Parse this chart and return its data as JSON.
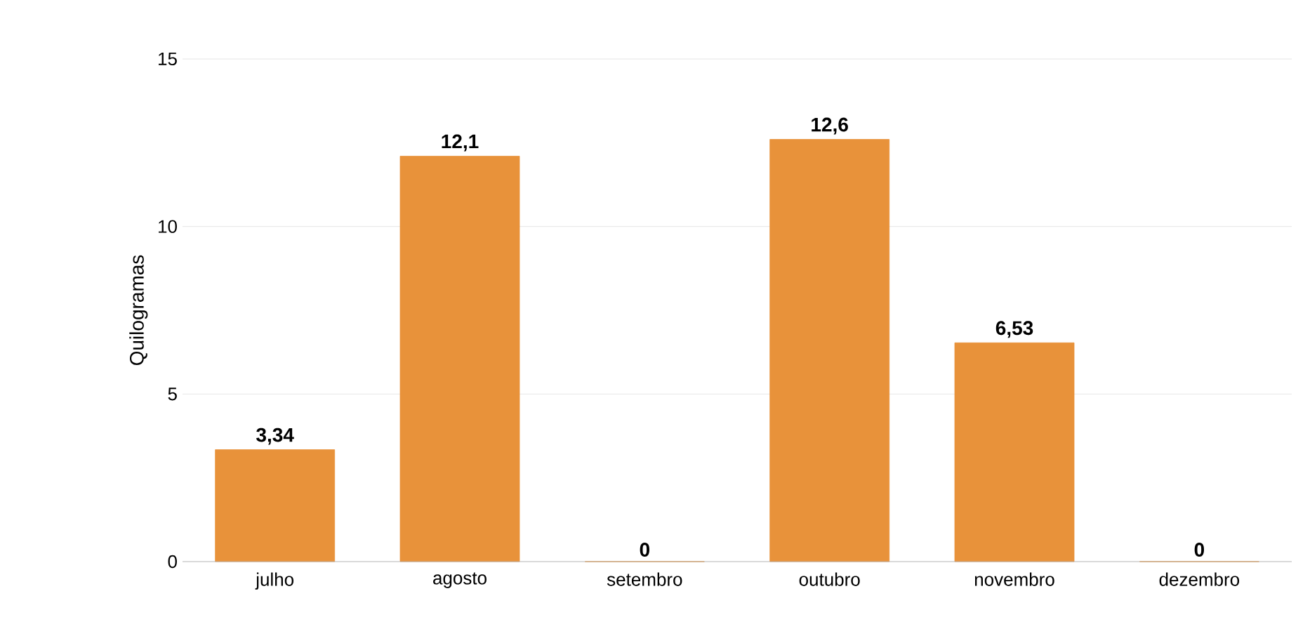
{
  "chart_data": {
    "type": "bar",
    "ylabel": "Quilogramas",
    "categories": [
      "julho",
      "agosto",
      "setembro",
      "outubro",
      "novembro",
      "dezembro"
    ],
    "values": [
      3.34,
      12.1,
      0,
      12.6,
      6.53,
      0
    ],
    "value_labels": [
      "3,34",
      "12,1",
      "0",
      "12,6",
      "6,53",
      "0"
    ],
    "color": "#e8923a",
    "ylim": [
      0,
      15
    ],
    "yticks": [
      0,
      5,
      10,
      15
    ],
    "grid": "y"
  }
}
